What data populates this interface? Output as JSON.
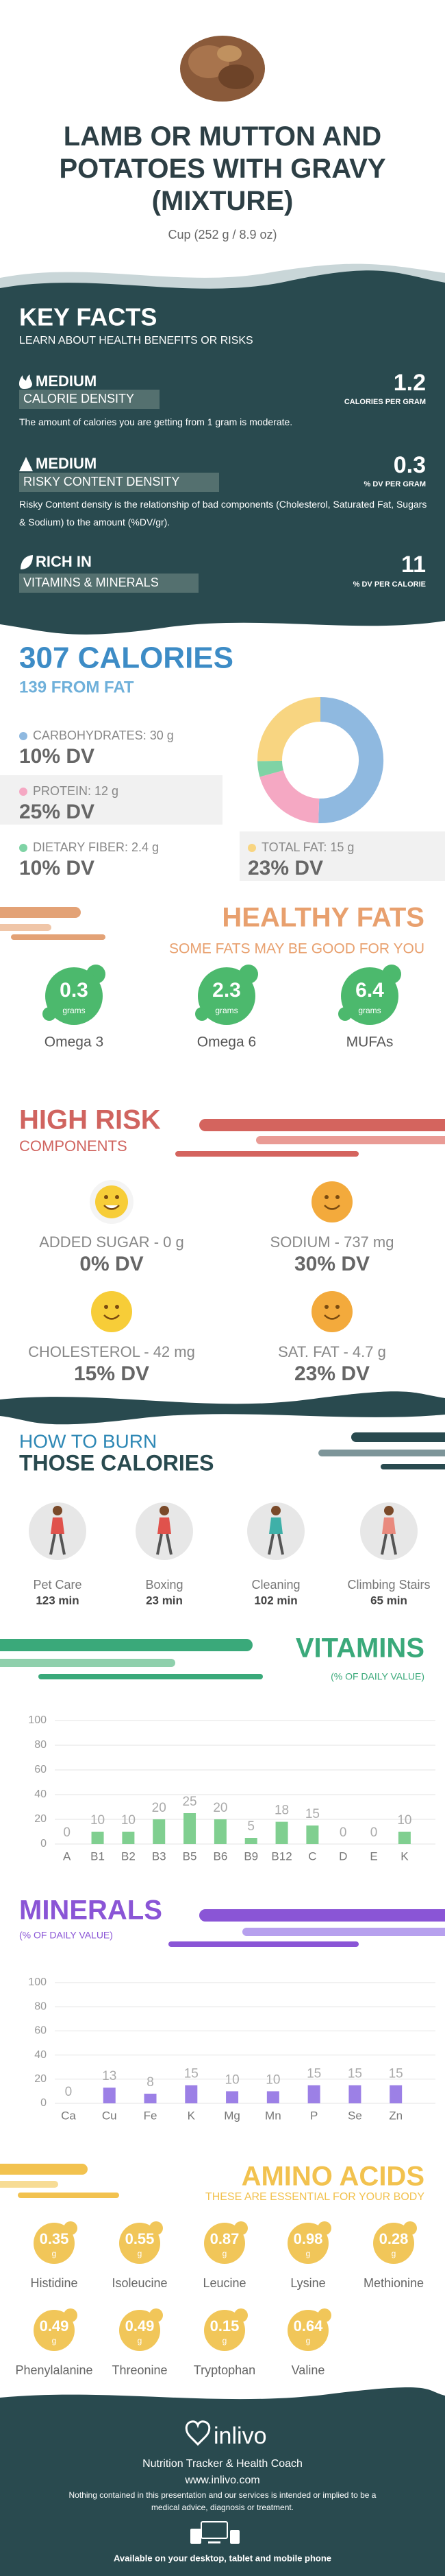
{
  "header": {
    "title": "LAMB OR MUTTON AND POTATOES WITH GRAVY (MIXTURE)",
    "serving": "Cup (252 g / 8.9 oz)"
  },
  "key_facts": {
    "title": "KEY FACTS",
    "subtitle": "LEARN ABOUT HEALTH BENEFITS OR RISKS",
    "items": [
      {
        "level": "MEDIUM",
        "name": "CALORIE DENSITY",
        "value": 1.2,
        "unit": "CALORIES PER GRAM",
        "description": "The amount of calories you are getting from 1 gram is moderate."
      },
      {
        "level": "MEDIUM",
        "name": "RISKY CONTENT DENSITY",
        "value": 0.3,
        "unit": "% DV PER GRAM",
        "description": "Risky Content density is the relationship of bad components (Cholesterol, Saturated Fat, Sugars & Sodium) to the amount (%DV/gr)."
      },
      {
        "level": "RICH IN",
        "name": "VITAMINS & MINERALS",
        "value": 11,
        "unit": "% DV PER CALORIE"
      }
    ]
  },
  "chart_data": [
    {
      "type": "pie",
      "donut": true,
      "title": "307 CALORIES",
      "subtitle": "139 FROM FAT",
      "values": [
        30,
        12,
        2.4,
        15
      ],
      "value_labels": [
        "CARBOHYDRATES: 30 g",
        "PROTEIN: 12 g",
        "DIETARY FIBER: 2.4 g",
        "TOTAL FAT: 15 g"
      ],
      "dv_labels": [
        "10% DV",
        "25% DV",
        "10% DV",
        "23% DV"
      ],
      "colors": [
        "#8fb9e0",
        "#f5a8c3",
        "#7fd3a5",
        "#f8d581"
      ]
    },
    {
      "type": "bar",
      "title": "VITAMINS",
      "subtitle": "(% OF DAILY VALUE)",
      "categories": [
        "A",
        "B1",
        "B2",
        "B3",
        "B5",
        "B6",
        "B9",
        "B12",
        "C",
        "D",
        "E",
        "K"
      ],
      "values": [
        0,
        10,
        10,
        20,
        25,
        20,
        5,
        18,
        15,
        0,
        0,
        10
      ],
      "color": "#80cf90",
      "ylim": [
        0,
        100
      ],
      "yticks": [
        0,
        20,
        40,
        60,
        80,
        100
      ],
      "grid": true
    },
    {
      "type": "bar",
      "title": "MINERALS",
      "subtitle": "(% OF DAILY VALUE)",
      "categories": [
        "Ca",
        "Cu",
        "Fe",
        "K",
        "Mg",
        "Mn",
        "P",
        "Se",
        "Zn"
      ],
      "values": [
        0,
        13,
        8,
        15,
        10,
        10,
        15,
        15,
        15
      ],
      "color": "#9c80e6",
      "ylim": [
        0,
        100
      ],
      "yticks": [
        0,
        20,
        40,
        60,
        80,
        100
      ],
      "grid": true
    }
  ],
  "healthy_fats": {
    "title": "HEALTHY FATS",
    "subtitle": "SOME FATS MAY BE GOOD FOR YOU",
    "items": [
      {
        "value": 0.3,
        "unit": "grams",
        "name": "Omega 3"
      },
      {
        "value": 2.3,
        "unit": "grams",
        "name": "Omega 6"
      },
      {
        "value": 6.4,
        "unit": "grams",
        "name": "MUFAs"
      }
    ]
  },
  "high_risk": {
    "title": "HIGH RISK",
    "subtitle": "COMPONENTS",
    "items": [
      {
        "label": "ADDED SUGAR - 0 g",
        "dv": "0% DV"
      },
      {
        "label": "SODIUM - 737 mg",
        "dv": "30% DV"
      },
      {
        "label": "CHOLESTEROL - 42 mg",
        "dv": "15% DV"
      },
      {
        "label": "SAT. FAT - 4.7 g",
        "dv": "23% DV"
      }
    ]
  },
  "burn": {
    "title_line1": "HOW TO BURN",
    "title_line2": "THOSE CALORIES",
    "activities": [
      {
        "name": "Pet Care",
        "time": "123 min"
      },
      {
        "name": "Boxing",
        "time": "23 min"
      },
      {
        "name": "Cleaning",
        "time": "102 min"
      },
      {
        "name": "Climbing Stairs",
        "time": "65 min"
      }
    ]
  },
  "amino_acids": {
    "title": "AMINO ACIDS",
    "subtitle": "THESE ARE ESSENTIAL FOR YOUR BODY",
    "items": [
      {
        "name": "Histidine",
        "value": 0.35,
        "unit": "g"
      },
      {
        "name": "Isoleucine",
        "value": 0.55,
        "unit": "g"
      },
      {
        "name": "Leucine",
        "value": 0.87,
        "unit": "g"
      },
      {
        "name": "Lysine",
        "value": 0.98,
        "unit": "g"
      },
      {
        "name": "Methionine",
        "value": 0.28,
        "unit": "g"
      },
      {
        "name": "Phenylalanine",
        "value": 0.49,
        "unit": "g"
      },
      {
        "name": "Threonine",
        "value": 0.49,
        "unit": "g"
      },
      {
        "name": "Tryptophan",
        "value": 0.15,
        "unit": "g"
      },
      {
        "name": "Valine",
        "value": 0.64,
        "unit": "g"
      }
    ]
  },
  "footer": {
    "brand": "inlivo",
    "tagline": "Nutrition Tracker & Health Coach",
    "url": "www.inlivo.com",
    "disclaimer": "Nothing contained in this presentation and our services is intended or implied to be a medical advice, diagnosis or treatment.",
    "availability": "Available on your desktop, tablet and mobile phone"
  }
}
